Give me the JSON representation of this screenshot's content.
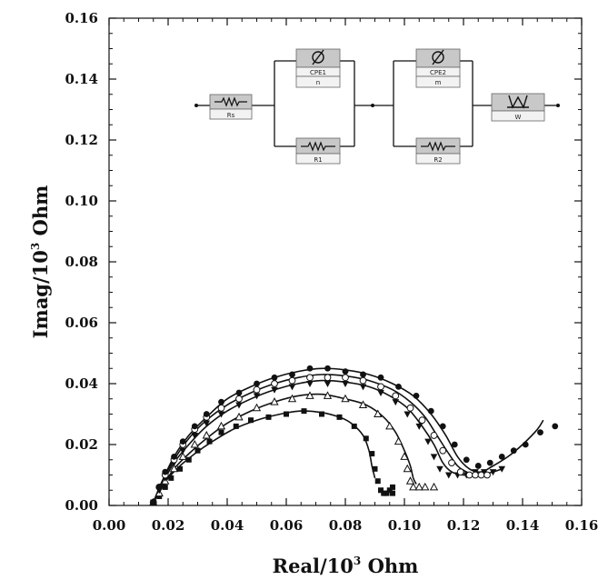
{
  "chart_data": {
    "type": "scatter",
    "xlabel": {
      "base": "Real/10",
      "sup": "3",
      "unit": " Ohm"
    },
    "ylabel": {
      "base": "Imag/10",
      "sup": "3",
      "unit": " Ohm"
    },
    "xlim": [
      0.0,
      0.16
    ],
    "ylim": [
      0.0,
      0.16
    ],
    "xticks": [
      "0.00",
      "0.02",
      "0.04",
      "0.06",
      "0.08",
      "0.10",
      "0.12",
      "0.14",
      "0.16"
    ],
    "yticks": [
      "0.00",
      "0.02",
      "0.04",
      "0.06",
      "0.08",
      "0.10",
      "0.12",
      "0.14",
      "0.16"
    ],
    "grid": false,
    "series": [
      {
        "marker": "square",
        "points": [
          [
            0.015,
            0.001
          ],
          [
            0.017,
            0.003
          ],
          [
            0.019,
            0.006
          ],
          [
            0.021,
            0.009
          ],
          [
            0.024,
            0.012
          ],
          [
            0.027,
            0.015
          ],
          [
            0.03,
            0.018
          ],
          [
            0.034,
            0.021
          ],
          [
            0.038,
            0.024
          ],
          [
            0.043,
            0.026
          ],
          [
            0.048,
            0.028
          ],
          [
            0.054,
            0.029
          ],
          [
            0.06,
            0.03
          ],
          [
            0.066,
            0.031
          ],
          [
            0.072,
            0.03
          ],
          [
            0.078,
            0.029
          ],
          [
            0.083,
            0.026
          ],
          [
            0.087,
            0.022
          ],
          [
            0.089,
            0.017
          ],
          [
            0.09,
            0.012
          ],
          [
            0.091,
            0.008
          ],
          [
            0.092,
            0.005
          ],
          [
            0.093,
            0.004
          ],
          [
            0.094,
            0.004
          ],
          [
            0.095,
            0.005
          ],
          [
            0.096,
            0.004
          ],
          [
            0.096,
            0.006
          ]
        ],
        "fit": [
          [
            0.015,
            0.001
          ],
          [
            0.017,
            0.005
          ],
          [
            0.02,
            0.009
          ],
          [
            0.024,
            0.013
          ],
          [
            0.029,
            0.017
          ],
          [
            0.035,
            0.021
          ],
          [
            0.042,
            0.025
          ],
          [
            0.05,
            0.028
          ],
          [
            0.058,
            0.03
          ],
          [
            0.065,
            0.031
          ],
          [
            0.072,
            0.0305
          ],
          [
            0.078,
            0.029
          ],
          [
            0.082,
            0.027
          ],
          [
            0.086,
            0.023
          ],
          [
            0.088,
            0.018
          ],
          [
            0.089,
            0.013
          ],
          [
            0.09,
            0.009
          ]
        ]
      },
      {
        "marker": "triangle-up",
        "points": [
          [
            0.015,
            0.001
          ],
          [
            0.017,
            0.004
          ],
          [
            0.019,
            0.008
          ],
          [
            0.022,
            0.012
          ],
          [
            0.025,
            0.016
          ],
          [
            0.029,
            0.02
          ],
          [
            0.033,
            0.023
          ],
          [
            0.038,
            0.026
          ],
          [
            0.044,
            0.029
          ],
          [
            0.05,
            0.032
          ],
          [
            0.056,
            0.034
          ],
          [
            0.062,
            0.035
          ],
          [
            0.068,
            0.036
          ],
          [
            0.074,
            0.036
          ],
          [
            0.08,
            0.035
          ],
          [
            0.086,
            0.033
          ],
          [
            0.091,
            0.03
          ],
          [
            0.095,
            0.026
          ],
          [
            0.098,
            0.021
          ],
          [
            0.1,
            0.016
          ],
          [
            0.101,
            0.012
          ],
          [
            0.102,
            0.008
          ],
          [
            0.103,
            0.006
          ],
          [
            0.105,
            0.006
          ],
          [
            0.107,
            0.006
          ],
          [
            0.11,
            0.006
          ]
        ],
        "fit": [
          [
            0.015,
            0.001
          ],
          [
            0.018,
            0.006
          ],
          [
            0.022,
            0.012
          ],
          [
            0.027,
            0.017
          ],
          [
            0.033,
            0.022
          ],
          [
            0.04,
            0.027
          ],
          [
            0.048,
            0.031
          ],
          [
            0.056,
            0.034
          ],
          [
            0.064,
            0.036
          ],
          [
            0.072,
            0.0365
          ],
          [
            0.08,
            0.035
          ],
          [
            0.087,
            0.033
          ],
          [
            0.093,
            0.029
          ],
          [
            0.097,
            0.024
          ],
          [
            0.1,
            0.018
          ],
          [
            0.102,
            0.013
          ],
          [
            0.103,
            0.009
          ],
          [
            0.104,
            0.007
          ]
        ]
      },
      {
        "marker": "triangle-down",
        "points": [
          [
            0.015,
            0.001
          ],
          [
            0.017,
            0.005
          ],
          [
            0.019,
            0.009
          ],
          [
            0.022,
            0.014
          ],
          [
            0.025,
            0.018
          ],
          [
            0.029,
            0.023
          ],
          [
            0.033,
            0.027
          ],
          [
            0.038,
            0.03
          ],
          [
            0.044,
            0.033
          ],
          [
            0.05,
            0.036
          ],
          [
            0.056,
            0.038
          ],
          [
            0.062,
            0.039
          ],
          [
            0.068,
            0.04
          ],
          [
            0.074,
            0.04
          ],
          [
            0.08,
            0.04
          ],
          [
            0.086,
            0.039
          ],
          [
            0.092,
            0.037
          ],
          [
            0.097,
            0.034
          ],
          [
            0.101,
            0.03
          ],
          [
            0.105,
            0.026
          ],
          [
            0.108,
            0.021
          ],
          [
            0.11,
            0.016
          ],
          [
            0.112,
            0.012
          ],
          [
            0.115,
            0.01
          ],
          [
            0.118,
            0.01
          ],
          [
            0.121,
            0.01
          ],
          [
            0.124,
            0.011
          ],
          [
            0.127,
            0.011
          ],
          [
            0.13,
            0.011
          ],
          [
            0.133,
            0.012
          ]
        ],
        "fit": [
          [
            0.015,
            0.001
          ],
          [
            0.018,
            0.007
          ],
          [
            0.022,
            0.014
          ],
          [
            0.027,
            0.02
          ],
          [
            0.033,
            0.026
          ],
          [
            0.04,
            0.031
          ],
          [
            0.048,
            0.035
          ],
          [
            0.056,
            0.038
          ],
          [
            0.064,
            0.04
          ],
          [
            0.072,
            0.041
          ],
          [
            0.08,
            0.0405
          ],
          [
            0.088,
            0.039
          ],
          [
            0.095,
            0.036
          ],
          [
            0.101,
            0.032
          ],
          [
            0.106,
            0.026
          ],
          [
            0.11,
            0.02
          ],
          [
            0.113,
            0.014
          ],
          [
            0.116,
            0.011
          ],
          [
            0.12,
            0.01
          ],
          [
            0.125,
            0.01
          ],
          [
            0.13,
            0.011
          ],
          [
            0.133,
            0.012
          ]
        ]
      },
      {
        "marker": "circle-open",
        "points": [
          [
            0.015,
            0.001
          ],
          [
            0.017,
            0.006
          ],
          [
            0.019,
            0.01
          ],
          [
            0.022,
            0.015
          ],
          [
            0.025,
            0.02
          ],
          [
            0.029,
            0.025
          ],
          [
            0.033,
            0.029
          ],
          [
            0.038,
            0.032
          ],
          [
            0.044,
            0.035
          ],
          [
            0.05,
            0.038
          ],
          [
            0.056,
            0.04
          ],
          [
            0.062,
            0.041
          ],
          [
            0.068,
            0.042
          ],
          [
            0.074,
            0.042
          ],
          [
            0.08,
            0.042
          ],
          [
            0.086,
            0.041
          ],
          [
            0.092,
            0.039
          ],
          [
            0.097,
            0.036
          ],
          [
            0.102,
            0.032
          ],
          [
            0.106,
            0.028
          ],
          [
            0.11,
            0.023
          ],
          [
            0.113,
            0.018
          ],
          [
            0.116,
            0.014
          ],
          [
            0.119,
            0.011
          ],
          [
            0.122,
            0.01
          ],
          [
            0.124,
            0.01
          ],
          [
            0.126,
            0.01
          ],
          [
            0.128,
            0.01
          ]
        ],
        "fit": [
          [
            0.015,
            0.001
          ],
          [
            0.018,
            0.008
          ],
          [
            0.022,
            0.015
          ],
          [
            0.027,
            0.022
          ],
          [
            0.033,
            0.028
          ],
          [
            0.04,
            0.033
          ],
          [
            0.048,
            0.037
          ],
          [
            0.056,
            0.04
          ],
          [
            0.064,
            0.042
          ],
          [
            0.072,
            0.043
          ],
          [
            0.08,
            0.0425
          ],
          [
            0.088,
            0.041
          ],
          [
            0.096,
            0.038
          ],
          [
            0.102,
            0.034
          ],
          [
            0.107,
            0.029
          ],
          [
            0.111,
            0.023
          ],
          [
            0.115,
            0.017
          ],
          [
            0.118,
            0.013
          ],
          [
            0.121,
            0.011
          ],
          [
            0.124,
            0.01
          ],
          [
            0.128,
            0.011
          ]
        ]
      },
      {
        "marker": "circle-filled",
        "points": [
          [
            0.015,
            0.001
          ],
          [
            0.017,
            0.006
          ],
          [
            0.019,
            0.011
          ],
          [
            0.022,
            0.016
          ],
          [
            0.025,
            0.021
          ],
          [
            0.029,
            0.026
          ],
          [
            0.033,
            0.03
          ],
          [
            0.038,
            0.034
          ],
          [
            0.044,
            0.037
          ],
          [
            0.05,
            0.04
          ],
          [
            0.056,
            0.042
          ],
          [
            0.062,
            0.043
          ],
          [
            0.068,
            0.045
          ],
          [
            0.074,
            0.045
          ],
          [
            0.08,
            0.044
          ],
          [
            0.086,
            0.043
          ],
          [
            0.092,
            0.042
          ],
          [
            0.098,
            0.039
          ],
          [
            0.104,
            0.036
          ],
          [
            0.109,
            0.031
          ],
          [
            0.113,
            0.026
          ],
          [
            0.117,
            0.02
          ],
          [
            0.121,
            0.015
          ],
          [
            0.125,
            0.013
          ],
          [
            0.129,
            0.014
          ],
          [
            0.133,
            0.016
          ],
          [
            0.137,
            0.018
          ],
          [
            0.141,
            0.02
          ],
          [
            0.146,
            0.024
          ],
          [
            0.151,
            0.026
          ]
        ],
        "fit": [
          [
            0.015,
            0.001
          ],
          [
            0.018,
            0.008
          ],
          [
            0.022,
            0.016
          ],
          [
            0.027,
            0.023
          ],
          [
            0.033,
            0.029
          ],
          [
            0.04,
            0.035
          ],
          [
            0.048,
            0.039
          ],
          [
            0.056,
            0.042
          ],
          [
            0.064,
            0.044
          ],
          [
            0.072,
            0.045
          ],
          [
            0.08,
            0.0445
          ],
          [
            0.088,
            0.043
          ],
          [
            0.096,
            0.04
          ],
          [
            0.103,
            0.036
          ],
          [
            0.109,
            0.03
          ],
          [
            0.114,
            0.023
          ],
          [
            0.118,
            0.016
          ],
          [
            0.122,
            0.012
          ],
          [
            0.126,
            0.011
          ],
          [
            0.13,
            0.013
          ],
          [
            0.135,
            0.016
          ],
          [
            0.14,
            0.02
          ],
          [
            0.145,
            0.025
          ],
          [
            0.147,
            0.028
          ]
        ]
      }
    ]
  },
  "circuit": {
    "elements": {
      "Rs": {
        "label": "Rs"
      },
      "CPE1": {
        "label": "CPE1",
        "param": "n"
      },
      "R1": {
        "label": "R1"
      },
      "CPE2": {
        "label": "CPE2",
        "param": "m"
      },
      "R2": {
        "label": "R2"
      },
      "W": {
        "label": "W"
      }
    }
  }
}
